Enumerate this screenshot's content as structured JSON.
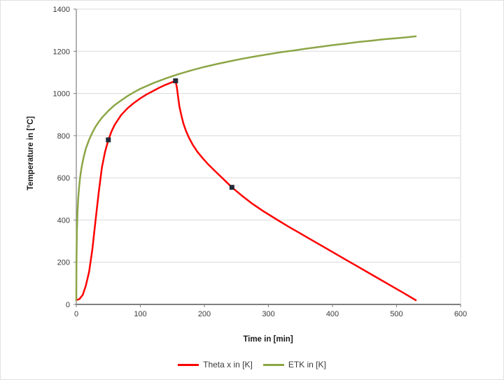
{
  "chart": {
    "background": "#ffffff",
    "outer_border_color": "#e0e0e0"
  },
  "chart_data": {
    "type": "line",
    "title": "",
    "xlabel": "Time in [min]",
    "ylabel": "Temperature in [°C]",
    "xlim": [
      0,
      600
    ],
    "ylim": [
      0,
      1400
    ],
    "xticks": [
      0,
      100,
      200,
      300,
      400,
      500,
      600
    ],
    "yticks": [
      0,
      200,
      400,
      600,
      800,
      1000,
      1200,
      1400
    ],
    "grid": "horizontal-only",
    "gridline_color": "#d9d9d9",
    "axis_color": "#7f7f7f",
    "legend_position": "bottom",
    "series": [
      {
        "name": "Theta x in [K]",
        "color": "#ff0000",
        "width": 2.5,
        "points": [
          [
            0,
            20
          ],
          [
            5,
            26
          ],
          [
            10,
            45
          ],
          [
            15,
            90
          ],
          [
            20,
            155
          ],
          [
            25,
            260
          ],
          [
            30,
            395
          ],
          [
            35,
            530
          ],
          [
            40,
            650
          ],
          [
            45,
            725
          ],
          [
            50,
            780
          ],
          [
            55,
            820
          ],
          [
            60,
            852
          ],
          [
            70,
            898
          ],
          [
            80,
            930
          ],
          [
            90,
            955
          ],
          [
            100,
            977
          ],
          [
            110,
            996
          ],
          [
            120,
            1012
          ],
          [
            130,
            1028
          ],
          [
            140,
            1042
          ],
          [
            150,
            1054
          ],
          [
            155,
            1060
          ],
          [
            157,
            1028
          ],
          [
            159,
            982
          ],
          [
            161,
            938
          ],
          [
            164,
            896
          ],
          [
            167,
            860
          ],
          [
            171,
            824
          ],
          [
            176,
            790
          ],
          [
            182,
            756
          ],
          [
            189,
            724
          ],
          [
            197,
            694
          ],
          [
            206,
            664
          ],
          [
            216,
            634
          ],
          [
            229,
            596
          ],
          [
            243,
            555
          ],
          [
            258,
            517
          ],
          [
            275,
            477
          ],
          [
            292,
            442
          ],
          [
            310,
            408
          ],
          [
            330,
            371
          ],
          [
            350,
            336
          ],
          [
            370,
            301
          ],
          [
            390,
            266
          ],
          [
            410,
            231
          ],
          [
            430,
            196
          ],
          [
            450,
            161
          ],
          [
            470,
            126
          ],
          [
            490,
            91
          ],
          [
            510,
            56
          ],
          [
            530,
            20
          ]
        ],
        "markers": {
          "shape": "square",
          "color": "#222b38",
          "size": 7,
          "points": [
            [
              50,
              780
            ],
            [
              155,
              1060
            ],
            [
              243,
              555
            ]
          ]
        }
      },
      {
        "name": "ETK in [K]",
        "color": "#8ca646",
        "width": 2.5,
        "points": [
          [
            0,
            20
          ],
          [
            0.25,
            185
          ],
          [
            0.5,
            261
          ],
          [
            1,
            349
          ],
          [
            1.5,
            404
          ],
          [
            2,
            444
          ],
          [
            3,
            502
          ],
          [
            4,
            544
          ],
          [
            5,
            576
          ],
          [
            6,
            603
          ],
          [
            8,
            645
          ],
          [
            10,
            678
          ],
          [
            12,
            705
          ],
          [
            15,
            739
          ],
          [
            20,
            781
          ],
          [
            25,
            814
          ],
          [
            30,
            842
          ],
          [
            35,
            865
          ],
          [
            40,
            885
          ],
          [
            50,
            918
          ],
          [
            60,
            945
          ],
          [
            70,
            967
          ],
          [
            80,
            988
          ],
          [
            90,
            1006
          ],
          [
            100,
            1022
          ],
          [
            120,
            1049
          ],
          [
            140,
            1072
          ],
          [
            160,
            1092
          ],
          [
            180,
            1110
          ],
          [
            200,
            1126
          ],
          [
            220,
            1140
          ],
          [
            240,
            1153
          ],
          [
            260,
            1165
          ],
          [
            280,
            1176
          ],
          [
            300,
            1186
          ],
          [
            320,
            1196
          ],
          [
            340,
            1204
          ],
          [
            360,
            1213
          ],
          [
            380,
            1221
          ],
          [
            400,
            1229
          ],
          [
            420,
            1236
          ],
          [
            440,
            1244
          ],
          [
            460,
            1250
          ],
          [
            480,
            1257
          ],
          [
            500,
            1262
          ],
          [
            515,
            1266
          ],
          [
            530,
            1271
          ]
        ],
        "markers": null
      }
    ]
  }
}
